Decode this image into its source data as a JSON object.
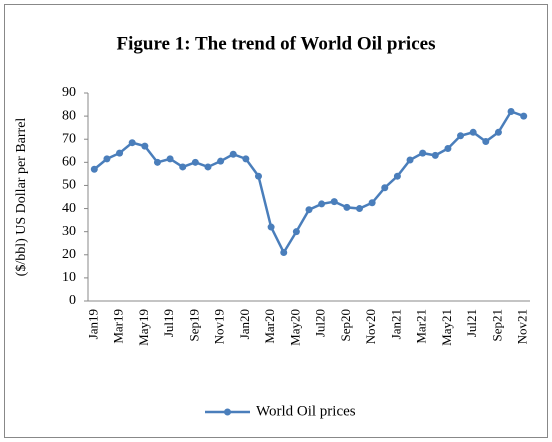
{
  "chart_data": {
    "type": "line",
    "title": "Figure 1: The trend of World Oil prices",
    "y_label": "($/bbl) US Dollar per  Barrel",
    "categories": [
      "Jan19",
      null,
      "Mar19",
      null,
      "May19",
      null,
      "Jul19",
      null,
      "Sep19",
      null,
      "Nov19",
      null,
      "Jan20",
      null,
      "Mar20",
      null,
      "May20",
      null,
      "Jul20",
      null,
      "Sep20",
      null,
      "Nov20",
      null,
      "Jan21",
      null,
      "Mar21",
      null,
      "May21",
      null,
      "Jul21",
      null,
      "Sep21",
      null,
      "Nov21"
    ],
    "series": [
      {
        "name": "World Oil prices",
        "color": "#4a7ebb",
        "values": [
          57,
          61.5,
          64,
          68.5,
          67,
          60,
          61.5,
          58,
          60,
          58,
          60.5,
          63.5,
          61.5,
          54,
          32,
          21,
          30,
          39.5,
          42,
          43,
          40.5,
          40,
          42.5,
          49,
          54,
          61,
          64,
          63,
          66,
          71.5,
          73,
          69,
          73,
          82,
          80
        ]
      }
    ],
    "ylim": [
      0,
      90
    ],
    "yticks": [
      0,
      10,
      20,
      30,
      40,
      50,
      60,
      70,
      80,
      90
    ],
    "grid": false,
    "legend": "bottom"
  }
}
